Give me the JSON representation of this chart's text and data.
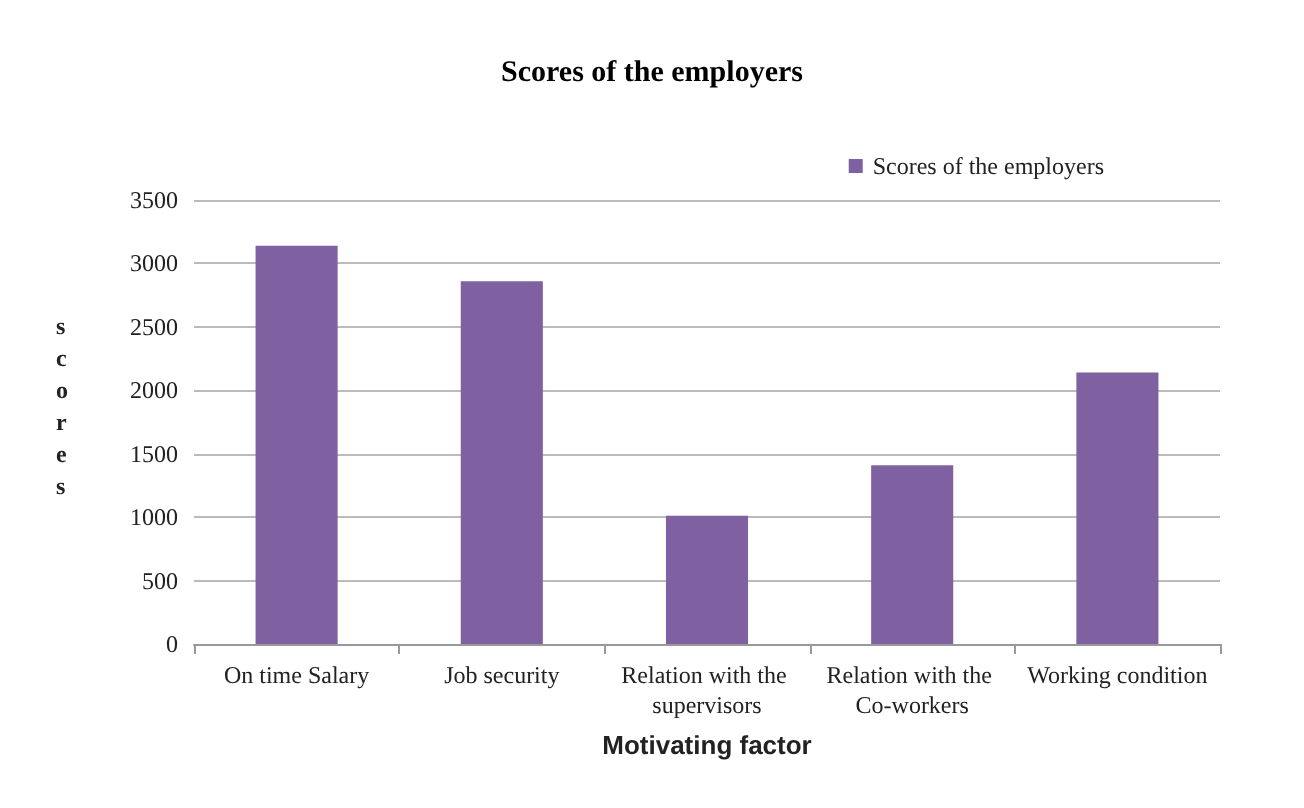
{
  "chart_data": {
    "type": "bar",
    "title": "Scores of the employers",
    "xlabel": "Motivating factor",
    "ylabel": "scores",
    "categories": [
      "On time Salary",
      "Job security",
      "Relation with the supervisors",
      "Relation with the Co-workers",
      "Working condition"
    ],
    "series": [
      {
        "name": "Scores of the employers",
        "color": "#7f60a0",
        "values": [
          3140,
          2860,
          1010,
          1410,
          2140
        ]
      }
    ],
    "ylim": [
      0,
      3500
    ],
    "yticks": [
      0,
      500,
      1000,
      1500,
      2000,
      2500,
      3000,
      3500
    ],
    "grid": "y",
    "legend": "top right"
  }
}
